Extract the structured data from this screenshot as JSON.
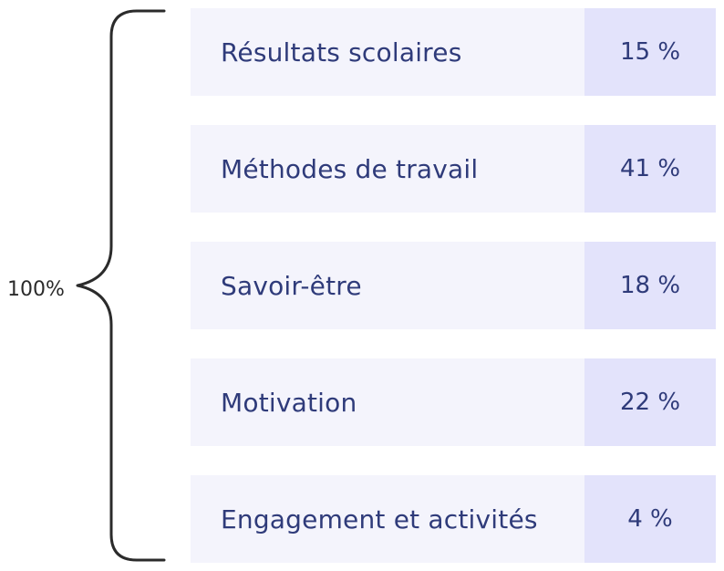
{
  "total": "100%",
  "colors": {
    "text": "#2f3b7a",
    "label_bg": "#f4f4fc",
    "value_bg": "#e3e3fb",
    "brace": "#2b2b2b"
  },
  "items": [
    {
      "label": "Résultats scolaires",
      "value": "15 %"
    },
    {
      "label": "Méthodes de travail",
      "value": "41 %"
    },
    {
      "label": "Savoir-être",
      "value": "18 %"
    },
    {
      "label": "Motivation",
      "value": "22 %"
    },
    {
      "label": "Engagement et activités",
      "value": "4 %"
    }
  ]
}
